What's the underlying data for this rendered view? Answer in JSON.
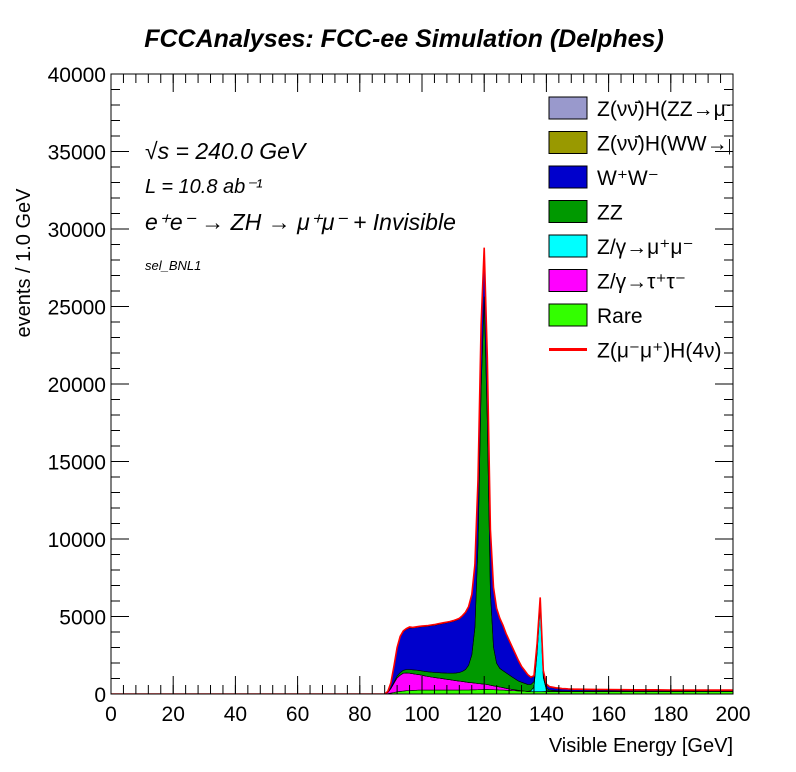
{
  "chart_data": {
    "type": "area",
    "title": "FCCAnalyses: FCC-ee Simulation (Delphes)",
    "xlabel": "Visible Energy [GeV]",
    "ylabel": "events / 1.0 GeV",
    "xlim": [
      0,
      200
    ],
    "ylim": [
      0,
      40000
    ],
    "xticks": [
      "0",
      "20",
      "40",
      "60",
      "80",
      "100",
      "120",
      "140",
      "160",
      "180",
      "200"
    ],
    "yticks": [
      "0",
      "5000",
      "10000",
      "15000",
      "20000",
      "25000",
      "30000",
      "35000",
      "40000"
    ],
    "annotations": [
      "√s = 240.0 GeV",
      "L = 10.8 ab⁻¹",
      "e⁺e⁻ → ZH → μ⁺μ⁻ + Invisible",
      "sel_BNL1"
    ],
    "stacked": true,
    "legend_position": "top-right",
    "x": [
      88,
      89,
      90,
      91,
      92,
      93,
      94,
      95,
      96,
      97,
      98,
      99,
      100,
      101,
      102,
      103,
      104,
      105,
      106,
      107,
      108,
      109,
      110,
      111,
      112,
      113,
      114,
      115,
      116,
      117,
      118,
      119,
      120,
      121,
      122,
      123,
      124,
      125,
      126,
      127,
      128,
      129,
      130,
      131,
      132,
      133,
      134,
      135,
      136,
      137,
      138,
      139,
      140,
      141,
      142,
      143,
      144,
      145,
      146,
      147,
      148,
      149,
      150,
      155,
      160,
      165,
      170,
      175,
      180,
      185,
      190,
      195,
      200
    ],
    "series": [
      {
        "name": "Rare",
        "color": "#33ff00",
        "values": [
          0,
          20,
          60,
          100,
          140,
          170,
          190,
          210,
          220,
          230,
          240,
          250,
          250,
          250,
          250,
          250,
          250,
          250,
          250,
          250,
          250,
          250,
          250,
          250,
          250,
          260,
          260,
          260,
          270,
          270,
          280,
          290,
          300,
          300,
          290,
          280,
          270,
          260,
          250,
          240,
          230,
          220,
          210,
          200,
          190,
          180,
          170,
          160,
          150,
          150,
          150,
          160,
          170,
          170,
          170,
          170,
          170,
          170,
          170,
          170,
          170,
          170,
          170,
          170,
          170,
          170,
          170,
          170,
          170,
          170,
          170,
          170,
          170
        ]
      },
      {
        "name": "Z/γ→τ⁺τ⁻",
        "color": "#ff00ff",
        "values": [
          0,
          80,
          300,
          600,
          900,
          1050,
          1150,
          1150,
          1120,
          1080,
          1040,
          1000,
          960,
          920,
          880,
          850,
          820,
          790,
          760,
          730,
          700,
          670,
          640,
          610,
          580,
          550,
          520,
          490,
          460,
          430,
          400,
          370,
          340,
          310,
          280,
          250,
          220,
          190,
          160,
          130,
          100,
          80,
          60,
          40,
          20,
          10,
          0,
          0,
          0,
          0,
          0,
          0,
          0,
          0,
          0,
          0,
          0,
          0,
          0,
          0,
          0,
          0,
          0,
          0,
          0,
          0,
          0,
          0,
          0,
          0,
          0,
          0,
          0
        ]
      },
      {
        "name": "Z/γ→μ⁺μ⁻",
        "color": "#00ffff",
        "values": [
          0,
          0,
          0,
          0,
          0,
          0,
          0,
          0,
          0,
          0,
          0,
          0,
          0,
          0,
          0,
          0,
          0,
          0,
          0,
          0,
          0,
          0,
          0,
          0,
          0,
          0,
          0,
          0,
          0,
          0,
          0,
          0,
          0,
          0,
          0,
          0,
          0,
          0,
          0,
          0,
          0,
          0,
          0,
          0,
          0,
          0,
          0,
          50,
          300,
          2500,
          5500,
          900,
          100,
          0,
          0,
          0,
          0,
          0,
          0,
          0,
          0,
          0,
          0,
          0,
          0,
          0,
          0,
          0,
          0,
          0,
          0,
          0,
          0
        ]
      },
      {
        "name": "ZZ",
        "color": "#009900",
        "values": [
          0,
          10,
          40,
          80,
          120,
          160,
          190,
          220,
          240,
          250,
          260,
          270,
          280,
          290,
          300,
          310,
          320,
          340,
          360,
          380,
          400,
          420,
          450,
          500,
          560,
          650,
          800,
          1100,
          1800,
          3600,
          9000,
          19000,
          25000,
          17000,
          6000,
          2500,
          1500,
          1200,
          1100,
          1000,
          900,
          800,
          700,
          600,
          550,
          500,
          450,
          400,
          350,
          300,
          250,
          180,
          120,
          80,
          60,
          40,
          30,
          20,
          20,
          20,
          20,
          20,
          20,
          20,
          20,
          20,
          20,
          20,
          20,
          20,
          20,
          20,
          20
        ]
      },
      {
        "name": "W⁺W⁻",
        "color": "#0000cc",
        "values": [
          0,
          50,
          300,
          1000,
          1800,
          2300,
          2500,
          2600,
          2700,
          2700,
          2750,
          2800,
          2850,
          2900,
          2950,
          3000,
          3050,
          3100,
          3150,
          3200,
          3250,
          3300,
          3350,
          3400,
          3450,
          3550,
          3650,
          3750,
          3850,
          4000,
          4100,
          4100,
          3100,
          4100,
          4000,
          3800,
          3500,
          3200,
          2900,
          2500,
          2200,
          1900,
          1600,
          1300,
          1000,
          800,
          600,
          450,
          350,
          300,
          300,
          250,
          220,
          200,
          180,
          160,
          150,
          140,
          130,
          120,
          110,
          100,
          100,
          90,
          80,
          70,
          60,
          60,
          50,
          50,
          40,
          40,
          40
        ]
      },
      {
        "name": "Z(νν̄)H(WW→μ⁺νμ⁻ν̄)",
        "color": "#999900",
        "values": [
          0,
          0,
          0,
          0,
          0,
          0,
          0,
          0,
          0,
          0,
          0,
          0,
          0,
          0,
          0,
          0,
          0,
          0,
          0,
          0,
          0,
          0,
          0,
          0,
          0,
          0,
          0,
          0,
          0,
          0,
          0,
          0,
          0,
          0,
          0,
          0,
          0,
          0,
          0,
          0,
          0,
          0,
          0,
          0,
          0,
          0,
          0,
          0,
          0,
          0,
          0,
          0,
          0,
          0,
          0,
          0,
          0,
          0,
          0,
          0,
          0,
          0,
          0,
          0,
          0,
          0,
          0,
          0,
          0,
          0,
          0,
          0,
          0
        ]
      },
      {
        "name": "Z(νν̄)H(ZZ→μ⁺μ⁻νν̄)",
        "color": "#9999cc",
        "values": [
          0,
          0,
          0,
          0,
          0,
          0,
          0,
          0,
          0,
          0,
          0,
          0,
          0,
          0,
          0,
          0,
          0,
          0,
          0,
          0,
          0,
          0,
          0,
          0,
          0,
          0,
          0,
          0,
          0,
          0,
          0,
          0,
          0,
          0,
          0,
          0,
          0,
          0,
          0,
          0,
          0,
          0,
          0,
          0,
          0,
          0,
          0,
          0,
          0,
          0,
          0,
          0,
          0,
          0,
          0,
          0,
          0,
          0,
          0,
          0,
          0,
          0,
          0,
          0,
          0,
          0,
          0,
          0,
          0,
          0,
          0,
          0,
          0
        ]
      },
      {
        "name": "Z(μ⁻μ⁺)H(4ν)",
        "color": "#ff0000",
        "style": "line",
        "values": [
          0,
          5,
          20,
          30,
          40,
          40,
          40,
          40,
          40,
          40,
          40,
          40,
          40,
          40,
          40,
          40,
          40,
          40,
          40,
          40,
          40,
          40,
          40,
          40,
          40,
          40,
          40,
          40,
          40,
          50,
          50,
          60,
          60,
          60,
          50,
          50,
          40,
          40,
          40,
          40,
          40,
          40,
          30,
          30,
          30,
          30,
          30,
          30,
          30,
          30,
          30,
          30,
          30,
          30,
          30,
          30,
          30,
          20,
          20,
          20,
          20,
          20,
          20,
          20,
          20,
          20,
          20,
          20,
          20,
          20,
          20,
          20,
          20
        ]
      }
    ],
    "legend_entries": [
      {
        "label": "Z(νν̄)H(ZZ→μ⁺μ⁻νν̄)",
        "color": "#9999cc",
        "kind": "box"
      },
      {
        "label": "Z(νν̄)H(WW→μ⁺νμ⁻ν̄)",
        "color": "#999900",
        "kind": "box"
      },
      {
        "label": "W⁺W⁻",
        "color": "#0000cc",
        "kind": "box"
      },
      {
        "label": "ZZ",
        "color": "#009900",
        "kind": "box"
      },
      {
        "label": "Z/γ→μ⁺μ⁻",
        "color": "#00ffff",
        "kind": "box"
      },
      {
        "label": "Z/γ→τ⁺τ⁻",
        "color": "#ff00ff",
        "kind": "box"
      },
      {
        "label": "Rare",
        "color": "#33ff00",
        "kind": "box"
      },
      {
        "label": "Z(μ⁻μ⁺)H(4ν)",
        "color": "#ff0000",
        "kind": "line"
      }
    ]
  }
}
